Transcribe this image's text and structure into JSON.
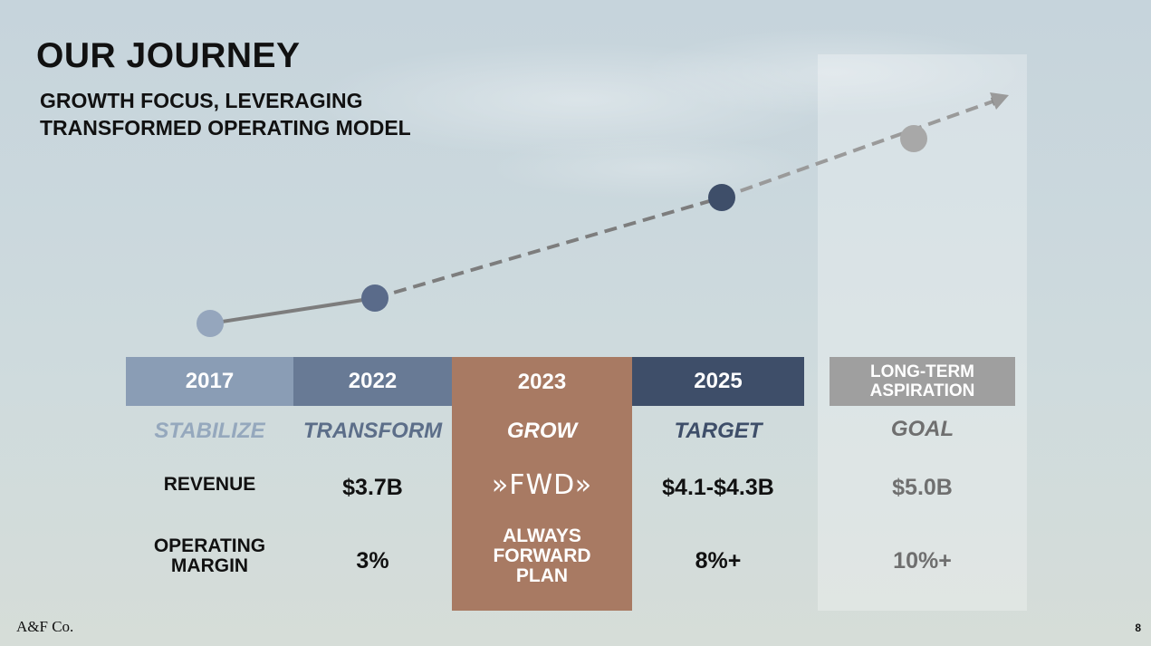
{
  "slide": {
    "title": "OUR JOURNEY",
    "subtitle_lines": [
      "GROWTH FOCUS, LEVERAGING",
      "TRANSFORMED OPERATING MODEL"
    ],
    "company": "A&F Co.",
    "page_number": "8"
  },
  "columns": [
    {
      "year": "2017",
      "phase": "STABILIZE"
    },
    {
      "year": "2022",
      "phase": "TRANSFORM",
      "revenue": "$3.7B",
      "operating_margin": "3%"
    },
    {
      "year": "2023",
      "phase": "GROW",
      "logo_text": "»FWD»",
      "plan_lines": [
        "ALWAYS",
        "FORWARD",
        "PLAN"
      ]
    },
    {
      "year": "2025",
      "phase": "TARGET",
      "revenue": "$4.1-$4.3B",
      "operating_margin": "8%+"
    },
    {
      "year_lines": [
        "LONG-TERM",
        "ASPIRATION"
      ],
      "phase": "GOAL",
      "revenue": "$5.0B",
      "operating_margin": "10%+"
    }
  ],
  "row_labels": {
    "revenue": "REVENUE",
    "operating_margin_lines": [
      "OPERATING",
      "MARGIN"
    ]
  },
  "colors": {
    "c2017": "#8a9db5",
    "c2022": "#687a95",
    "c2023": "#a87a63",
    "c2025": "#3e4e69",
    "long_term": "#9f9f9f",
    "trend_solid": "#7d7d7d",
    "trend_dashed": "#8a8a8a"
  },
  "trend": {
    "solid_segment": "2017 to 2022",
    "dashed_segment": "2022 to long-term aspiration",
    "arrow": "arrow-right-icon"
  }
}
